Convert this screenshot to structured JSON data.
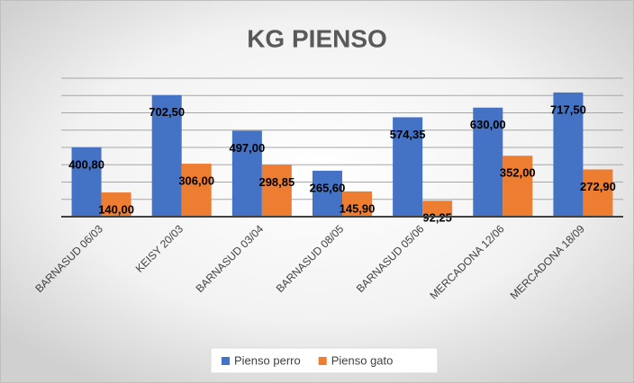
{
  "chart_data": {
    "type": "bar",
    "title": "KG PIENSO",
    "categories": [
      "BARNASUD 06/03",
      "KEISY 20/03",
      "BARNASUD 03/04",
      "BARNASUD 08/05",
      "BARNASUD 05/06",
      "MERCADONA 12/06",
      "MERCADONA 18/09"
    ],
    "series": [
      {
        "name": "Pienso perro",
        "color": "#4472c4",
        "values": [
          400.8,
          702.5,
          497.0,
          265.6,
          574.35,
          630.0,
          717.5
        ],
        "value_labels": [
          "400,80",
          "702,50",
          "497,00",
          "265,60",
          "574,35",
          "630,00",
          "717,50"
        ]
      },
      {
        "name": "Pienso gato",
        "color": "#ed7d31",
        "values": [
          140.0,
          306.0,
          298.85,
          145.9,
          92.25,
          352.0,
          272.9
        ],
        "value_labels": [
          "140,00",
          "306,00",
          "298,85",
          "145,90",
          "92,25",
          "352,00",
          "272,90"
        ]
      }
    ],
    "ylim": [
      0,
      800
    ],
    "yticks": [
      0,
      100,
      200,
      300,
      400,
      500,
      600,
      700,
      800
    ],
    "grid": true,
    "legend": "bottom"
  }
}
